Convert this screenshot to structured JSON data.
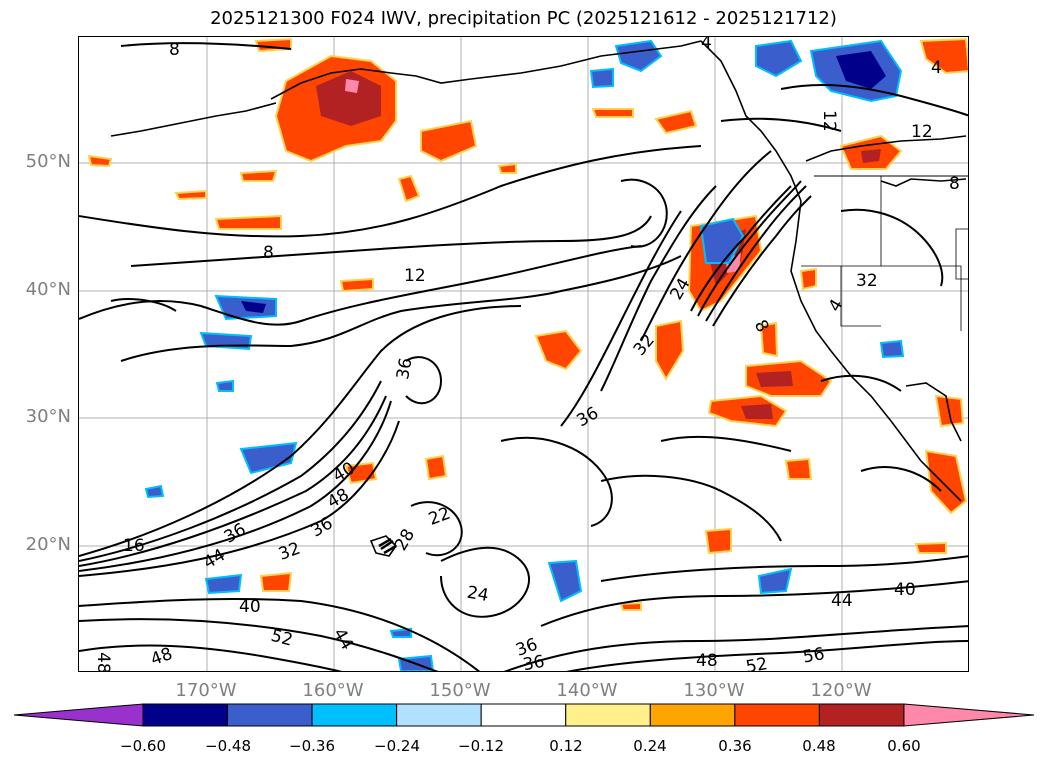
{
  "title": "2025121300 F024 IWV, precipitation PC (2025121612 - 2025121712)",
  "lat_labels": [
    "50°N",
    "40°N",
    "30°N",
    "20°N"
  ],
  "lon_labels": [
    "170°W",
    "160°W",
    "150°W",
    "140°W",
    "130°W",
    "120°W"
  ],
  "contour_labels": [
    "8",
    "8",
    "12",
    "4",
    "12",
    "8",
    "4",
    "12",
    "8",
    "36",
    "36",
    "32",
    "24",
    "32",
    "36",
    "40",
    "48",
    "28",
    "22",
    "44",
    "36",
    "16",
    "32",
    "40",
    "52",
    "44",
    "48",
    "48",
    "24",
    "36",
    "36",
    "48",
    "52",
    "56",
    "44",
    "40",
    "4"
  ],
  "colorbar": {
    "ticks": [
      "−0.60",
      "−0.48",
      "−0.36",
      "−0.24",
      "−0.12",
      "0.12",
      "0.24",
      "0.36",
      "0.48",
      "0.60"
    ],
    "colors": [
      "#9932cc",
      "#00008b",
      "#3a5fcd",
      "#00bfff",
      "#b0e2ff",
      "#ffffff",
      "#fff08c",
      "#ffa500",
      "#ff4500",
      "#b22222",
      "#ff88aa"
    ]
  }
}
